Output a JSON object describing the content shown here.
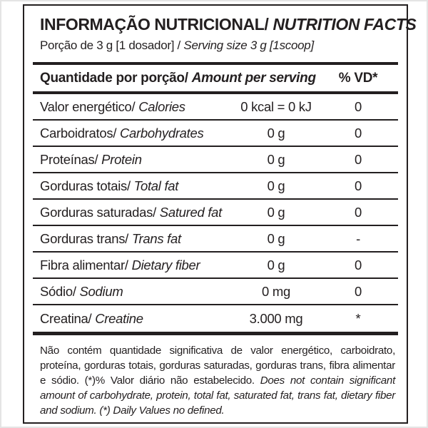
{
  "label": {
    "title_pt": "INFORMAÇÃO NUTRICIONAL/",
    "title_en": "NUTRITION FACTS",
    "serving_pt": "Porção de 3 g  [1 dosador] /",
    "serving_en": "Serving size 3 g  [1scoop]",
    "header": {
      "amount_pt": "Quantidade por porção/",
      "amount_en": "Amount per serving",
      "dv": "% VD*"
    },
    "rows": [
      {
        "name_pt": "Valor energético/",
        "name_en": "Calories",
        "amount": "0 kcal = 0 kJ",
        "dv": "0"
      },
      {
        "name_pt": "Carboidratos/",
        "name_en": "Carbohydrates",
        "amount": "0 g",
        "dv": "0"
      },
      {
        "name_pt": "Proteínas/",
        "name_en": "Protein",
        "amount": "0 g",
        "dv": "0"
      },
      {
        "name_pt": "Gorduras totais/",
        "name_en": "Total fat",
        "amount": "0 g",
        "dv": "0"
      },
      {
        "name_pt": "Gorduras saturadas/",
        "name_en": "Satured fat",
        "amount": "0 g",
        "dv": "0"
      },
      {
        "name_pt": "Gorduras trans/",
        "name_en": "Trans fat",
        "amount": "0 g",
        "dv": "-"
      },
      {
        "name_pt": "Fibra alimentar/",
        "name_en": "Dietary fiber",
        "amount": "0 g",
        "dv": "0"
      },
      {
        "name_pt": "Sódio/",
        "name_en": "Sodium",
        "amount": "0 mg",
        "dv": "0"
      },
      {
        "name_pt": "Creatina/",
        "name_en": "Creatine",
        "amount": "3.000 mg",
        "dv": "*"
      }
    ],
    "footnote_pt": "Não contém quantidade significativa de valor energético, carboidrato, proteína, gorduras totais, gorduras saturadas, gorduras trans, fibra alimentar e sódio. (*)% Valor diário não estabelecido.",
    "footnote_en": "Does not contain significant amount of carbohydrate, protein, total fat, saturated fat, trans fat, dietary fiber and sodium. (*) Daily Values no defined.",
    "colors": {
      "text": "#231f20",
      "background": "#ffffff"
    }
  }
}
